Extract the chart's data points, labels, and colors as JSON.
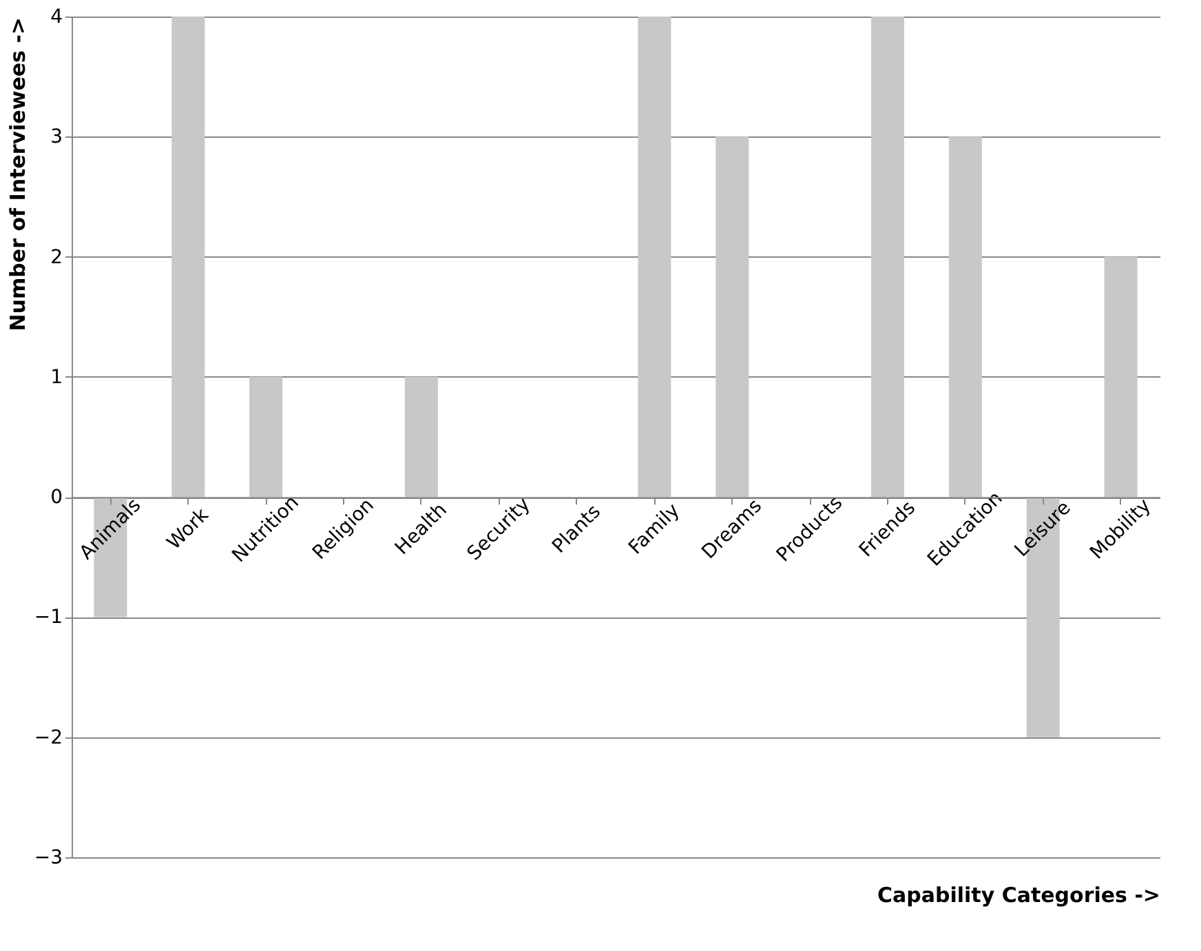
{
  "chart_data": {
    "type": "bar",
    "xlabel": "Capability Categories ->",
    "ylabel": "Number of Interviewees ->",
    "categories": [
      "Animals",
      "Work",
      "Nutrition",
      "Religion",
      "Health",
      "Security",
      "Plants",
      "Family",
      "Dreams",
      "Products",
      "Friends",
      "Education",
      "Leisure",
      "Mobility"
    ],
    "values": [
      -1,
      4,
      1,
      0,
      1,
      0,
      0,
      4,
      3,
      0,
      4,
      3,
      -2,
      2
    ],
    "color": "#c8c8c8",
    "ylim": [
      -3,
      4
    ],
    "yticks": [
      -3,
      -2,
      -1,
      0,
      1,
      2,
      3,
      4
    ],
    "grid": "y"
  }
}
